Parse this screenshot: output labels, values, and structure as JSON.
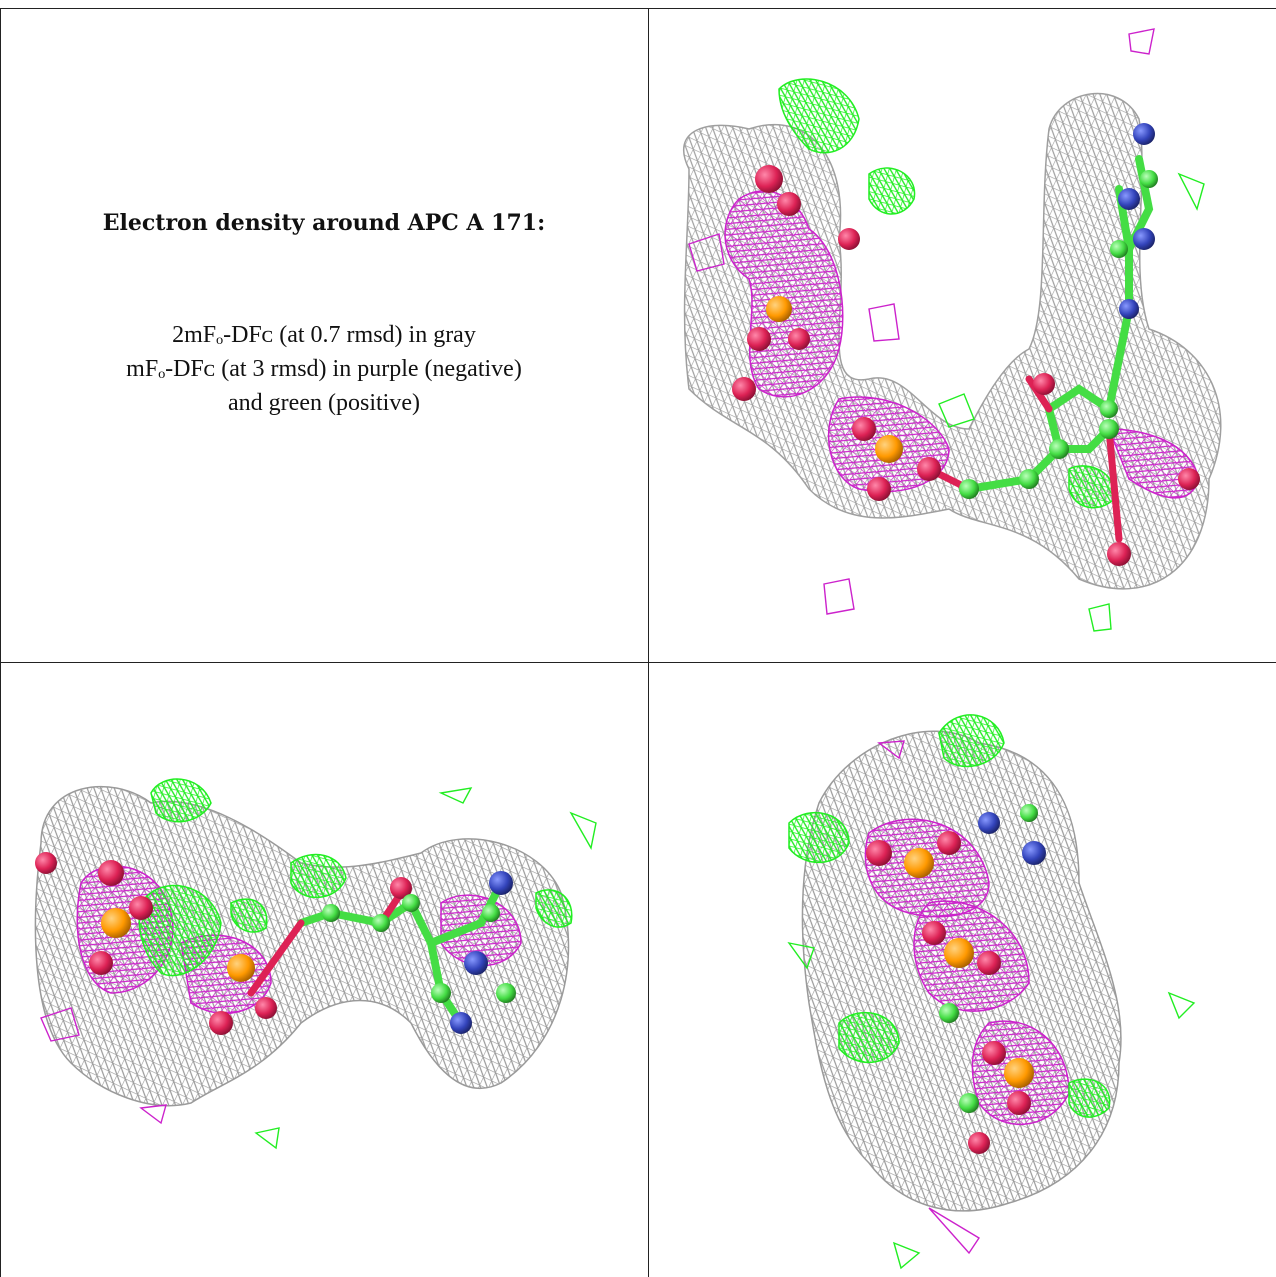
{
  "caption": {
    "title": "Electron density around APC A 171:",
    "line1": "2mFₒ-DFᴄ (at 0.7 rmsd) in gray",
    "line2": "mFₒ-DFᴄ (at 3 rmsd) in purple (negative)",
    "line3": "and green (positive)"
  },
  "colors": {
    "map_2fofc": "#9a9a9a",
    "map_fofc_negative": "#cc22cc",
    "map_fofc_positive": "#22ee22",
    "carbon": "#44dd44",
    "oxygen": "#dd2255",
    "nitrogen": "#3344bb",
    "phosphorus": "#ff9900"
  }
}
